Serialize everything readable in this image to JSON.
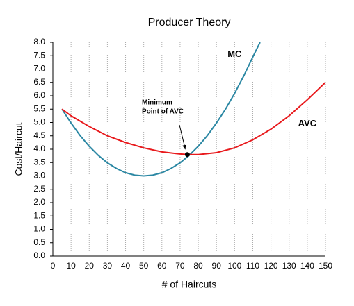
{
  "chart_data": {
    "type": "line",
    "title": "Producer Theory",
    "xlabel": "# of Haircuts",
    "ylabel": "Cost/Haircut",
    "xlim": [
      0,
      150
    ],
    "ylim": [
      0,
      8
    ],
    "xticks": [
      0,
      10,
      20,
      30,
      40,
      50,
      60,
      70,
      80,
      90,
      100,
      110,
      120,
      130,
      140,
      150
    ],
    "yticks": [
      {
        "value": 0,
        "label": "0.0"
      },
      {
        "value": 0.5,
        "label": "0.5"
      },
      {
        "value": 1,
        "label": "1.0"
      },
      {
        "value": 1.5,
        "label": "1.5"
      },
      {
        "value": 2,
        "label": "2.0"
      },
      {
        "value": 2.5,
        "label": "2.5"
      },
      {
        "value": 3,
        "label": "3.0"
      },
      {
        "value": 3.5,
        "label": "3.5"
      },
      {
        "value": 4,
        "label": "4.0"
      },
      {
        "value": 4.5,
        "label": "4.5"
      },
      {
        "value": 5,
        "label": "5.0"
      },
      {
        "value": 5.5,
        "label": "5.5"
      },
      {
        "value": 6,
        "label": "6.0"
      },
      {
        "value": 6.5,
        "label": "6.5"
      },
      {
        "value": 7,
        "label": "7.0"
      },
      {
        "value": 7.5,
        "label": "7.5"
      },
      {
        "value": 8,
        "label": "8.0"
      }
    ],
    "grid": "x",
    "series": [
      {
        "name": "MC",
        "color": "#2a87a3",
        "x": [
          5,
          10,
          15,
          20,
          25,
          30,
          35,
          40,
          45,
          50,
          55,
          60,
          65,
          70,
          75,
          80,
          85,
          90,
          95,
          100,
          105,
          110,
          114
        ],
        "values": [
          5.5,
          4.98,
          4.51,
          4.11,
          3.77,
          3.49,
          3.28,
          3.12,
          3.03,
          3.0,
          3.03,
          3.12,
          3.28,
          3.49,
          3.77,
          4.11,
          4.51,
          4.98,
          5.5,
          6.09,
          6.74,
          7.45,
          8.0
        ],
        "label_at": [
          100,
          7.55
        ]
      },
      {
        "name": "AVC",
        "color": "#e8191c",
        "x": [
          5,
          10,
          20,
          30,
          40,
          50,
          60,
          70,
          75,
          80,
          90,
          100,
          110,
          120,
          130,
          140,
          150
        ],
        "values": [
          5.5,
          5.25,
          4.85,
          4.5,
          4.25,
          4.05,
          3.9,
          3.82,
          3.8,
          3.8,
          3.87,
          4.05,
          4.35,
          4.75,
          5.25,
          5.85,
          6.5
        ],
        "label_at": [
          140,
          4.95
        ]
      }
    ],
    "annotation": {
      "lines": [
        "Minimum",
        "Point of AVC"
      ],
      "x": 74,
      "y": 3.8
    }
  }
}
